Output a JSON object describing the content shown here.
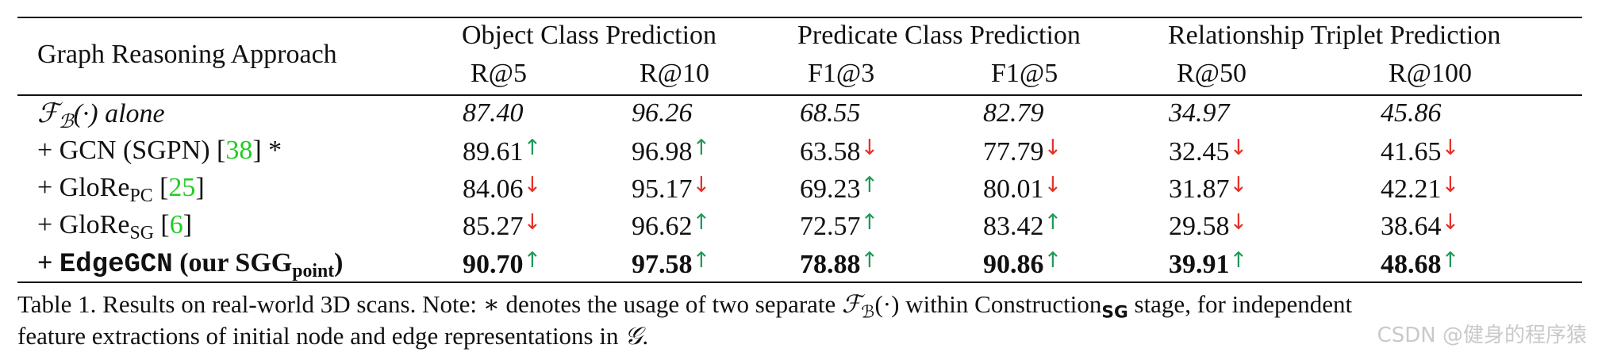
{
  "table": {
    "header": {
      "approach": "Graph Reasoning Approach",
      "groups": [
        {
          "title": "Object Class Prediction",
          "metrics": [
            "R@5",
            "R@10"
          ]
        },
        {
          "title": "Predicate Class Prediction",
          "metrics": [
            "F1@3",
            "F1@5"
          ]
        },
        {
          "title": "Relationship Triplet Prediction",
          "metrics": [
            "R@50",
            "R@100"
          ]
        }
      ]
    },
    "arrow_colors": {
      "up": "#1f9a5a",
      "down": "#e8302a"
    },
    "rows": [
      {
        "style": "italic",
        "label": [
          {
            "text": "ℱ",
            "style": "script"
          },
          {
            "text": "ℬ",
            "style": "sub"
          },
          {
            "text": "(·) alone"
          }
        ],
        "cells": [
          {
            "value": "87.40"
          },
          {
            "value": "96.26"
          },
          {
            "value": "68.55"
          },
          {
            "value": "82.79"
          },
          {
            "value": "34.97"
          },
          {
            "value": "45.86"
          }
        ]
      },
      {
        "style": "normal",
        "label": [
          {
            "text": "+ GCN (SGPN) ["
          },
          {
            "text": "38",
            "style": "ref"
          },
          {
            "text": "] *"
          }
        ],
        "cells": [
          {
            "value": "89.61",
            "arrow": "↑",
            "trend": "up"
          },
          {
            "value": "96.98",
            "arrow": "↑",
            "trend": "up"
          },
          {
            "value": "63.58",
            "arrow": "↓",
            "trend": "down"
          },
          {
            "value": "77.79",
            "arrow": "↓",
            "trend": "down"
          },
          {
            "value": "32.45",
            "arrow": "↓",
            "trend": "down"
          },
          {
            "value": "41.65",
            "arrow": "↓",
            "trend": "down"
          }
        ]
      },
      {
        "style": "normal",
        "label": [
          {
            "text": "+ GloRe"
          },
          {
            "text": "PC",
            "style": "sub"
          },
          {
            "text": " ["
          },
          {
            "text": "25",
            "style": "ref"
          },
          {
            "text": "]"
          }
        ],
        "cells": [
          {
            "value": "84.06",
            "arrow": "↓",
            "trend": "down"
          },
          {
            "value": "95.17",
            "arrow": "↓",
            "trend": "down"
          },
          {
            "value": "69.23",
            "arrow": "↑",
            "trend": "up"
          },
          {
            "value": "80.01",
            "arrow": "↓",
            "trend": "down"
          },
          {
            "value": "31.87",
            "arrow": "↓",
            "trend": "down"
          },
          {
            "value": "42.21",
            "arrow": "↓",
            "trend": "down"
          }
        ]
      },
      {
        "style": "normal",
        "label": [
          {
            "text": "+ GloRe"
          },
          {
            "text": "SG",
            "style": "sub"
          },
          {
            "text": " ["
          },
          {
            "text": "6",
            "style": "ref"
          },
          {
            "text": "]"
          }
        ],
        "cells": [
          {
            "value": "85.27",
            "arrow": "↓",
            "trend": "down"
          },
          {
            "value": "96.62",
            "arrow": "↑",
            "trend": "up"
          },
          {
            "value": "72.57",
            "arrow": "↑",
            "trend": "up"
          },
          {
            "value": "83.42",
            "arrow": "↑",
            "trend": "up"
          },
          {
            "value": "29.58",
            "arrow": "↓",
            "trend": "down"
          },
          {
            "value": "38.64",
            "arrow": "↓",
            "trend": "down"
          }
        ]
      },
      {
        "style": "bold",
        "label": [
          {
            "text": "+ "
          },
          {
            "text": "EdgeGCN",
            "style": "mono"
          },
          {
            "text": " (our SGG"
          },
          {
            "text": "point",
            "style": "sub"
          },
          {
            "text": ")"
          }
        ],
        "cells": [
          {
            "value": "90.70",
            "arrow": "↑",
            "trend": "up"
          },
          {
            "value": "97.58",
            "arrow": "↑",
            "trend": "up"
          },
          {
            "value": "78.88",
            "arrow": "↑",
            "trend": "up"
          },
          {
            "value": "90.86",
            "arrow": "↑",
            "trend": "up"
          },
          {
            "value": "39.91",
            "arrow": "↑",
            "trend": "up"
          },
          {
            "value": "48.68",
            "arrow": "↑",
            "trend": "up"
          }
        ]
      }
    ]
  },
  "caption": {
    "lines": [
      [
        {
          "text": "Table 1. Results on real-world 3D scans. Note: ∗ denotes the usage of two separate "
        },
        {
          "text": "ℱ",
          "style": "script"
        },
        {
          "text": "ℬ",
          "style": "sub"
        },
        {
          "text": "(·) within Construction"
        },
        {
          "text": "SG",
          "style": "subbold"
        },
        {
          "text": " stage, for independent"
        }
      ],
      [
        {
          "text": "feature extractions of initial node and edge representations in "
        },
        {
          "text": "𝒢",
          "style": "script"
        },
        {
          "text": "."
        }
      ]
    ]
  },
  "watermark": "CSDN @健身的程序猿"
}
